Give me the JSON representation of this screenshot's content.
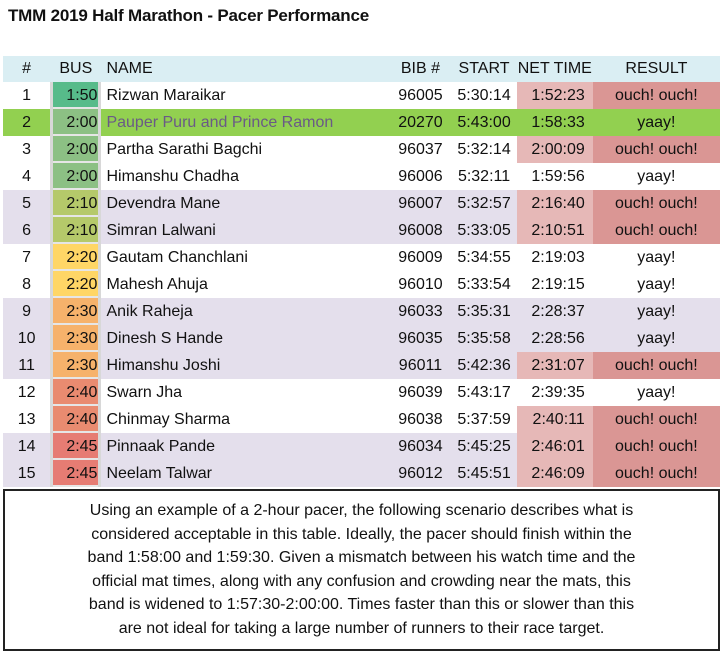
{
  "title": "TMM 2019 Half Marathon - Pacer Performance",
  "colors": {
    "header_bg": "#daeef3",
    "alt_row": "#e4dfec",
    "highlight_row": "#92d050",
    "bad_net": "#e6b8b7",
    "bad_result": "#da9694",
    "bus": {
      "1:50": "#57bb8a",
      "2:00": "#8cc084",
      "2:10": "#b5c96a",
      "2:20": "#ffd666",
      "2:30": "#f6b26b",
      "2:40": "#e98b70",
      "2:45": "#e67c73"
    }
  },
  "headers": [
    "#",
    "BUS",
    "NAME",
    "BIB #",
    "START",
    "NET TIME",
    "RESULT"
  ],
  "rows": [
    {
      "num": "1",
      "bus": "1:50",
      "name": "Rizwan Maraikar",
      "bib": "96005",
      "start": "5:30:14",
      "net": "1:52:23",
      "result": "ouch! ouch!",
      "bg": "white"
    },
    {
      "num": "2",
      "bus": "2:00",
      "name": "Pauper Puru and Prince Ramon",
      "bib": "20270",
      "start": "5:43:00",
      "net": "1:58:33",
      "result": "yaay!",
      "bg": "highlight"
    },
    {
      "num": "3",
      "bus": "2:00",
      "name": "Partha Sarathi Bagchi",
      "bib": "96037",
      "start": "5:32:14",
      "net": "2:00:09",
      "result": "ouch! ouch!",
      "bg": "white"
    },
    {
      "num": "4",
      "bus": "2:00",
      "name": "Himanshu Chadha",
      "bib": "96006",
      "start": "5:32:11",
      "net": "1:59:56",
      "result": "yaay!",
      "bg": "white"
    },
    {
      "num": "5",
      "bus": "2:10",
      "name": "Devendra Mane",
      "bib": "96007",
      "start": "5:32:57",
      "net": "2:16:40",
      "result": "ouch! ouch!",
      "bg": "lavender"
    },
    {
      "num": "6",
      "bus": "2:10",
      "name": "Simran Lalwani",
      "bib": "96008",
      "start": "5:33:05",
      "net": "2:10:51",
      "result": "ouch! ouch!",
      "bg": "lavender"
    },
    {
      "num": "7",
      "bus": "2:20",
      "name": "Gautam Chanchlani",
      "bib": "96009",
      "start": "5:34:55",
      "net": "2:19:03",
      "result": "yaay!",
      "bg": "white"
    },
    {
      "num": "8",
      "bus": "2:20",
      "name": "Mahesh Ahuja",
      "bib": "96010",
      "start": "5:33:54",
      "net": "2:19:15",
      "result": "yaay!",
      "bg": "white"
    },
    {
      "num": "9",
      "bus": "2:30",
      "name": "Anik Raheja",
      "bib": "96033",
      "start": "5:35:31",
      "net": "2:28:37",
      "result": "yaay!",
      "bg": "lavender"
    },
    {
      "num": "10",
      "bus": "2:30",
      "name": "Dinesh S Hande",
      "bib": "96035",
      "start": "5:35:58",
      "net": "2:28:56",
      "result": "yaay!",
      "bg": "lavender"
    },
    {
      "num": "11",
      "bus": "2:30",
      "name": "Himanshu Joshi",
      "bib": "96011",
      "start": "5:42:36",
      "net": "2:31:07",
      "result": "ouch! ouch!",
      "bg": "lavender"
    },
    {
      "num": "12",
      "bus": "2:40",
      "name": "Swarn Jha",
      "bib": "96039",
      "start": "5:43:17",
      "net": "2:39:35",
      "result": "yaay!",
      "bg": "white"
    },
    {
      "num": "13",
      "bus": "2:40",
      "name": "Chinmay Sharma",
      "bib": "96038",
      "start": "5:37:59",
      "net": "2:40:11",
      "result": "ouch! ouch!",
      "bg": "white"
    },
    {
      "num": "14",
      "bus": "2:45",
      "name": "Pinnaak Pande",
      "bib": "96034",
      "start": "5:45:25",
      "net": "2:46:01",
      "result": "ouch! ouch!",
      "bg": "lavender"
    },
    {
      "num": "15",
      "bus": "2:45",
      "name": "Neelam Talwar",
      "bib": "96012",
      "start": "5:45:51",
      "net": "2:46:09",
      "result": "ouch! ouch!",
      "bg": "lavender"
    }
  ],
  "note_lines": [
    "Using an example of a 2-hour pacer, the following scenario describes what is",
    "considered acceptable in this table. Ideally, the pacer should finish within the",
    "band 1:58:00 and 1:59:30. Given a mismatch between his watch time and the",
    "official mat times, along with any confusion and crowding near the mats, this",
    "band is widened to 1:57:30-2:00:00. Times faster than this or slower than this",
    "are not ideal for taking a large number of runners to their race target."
  ]
}
